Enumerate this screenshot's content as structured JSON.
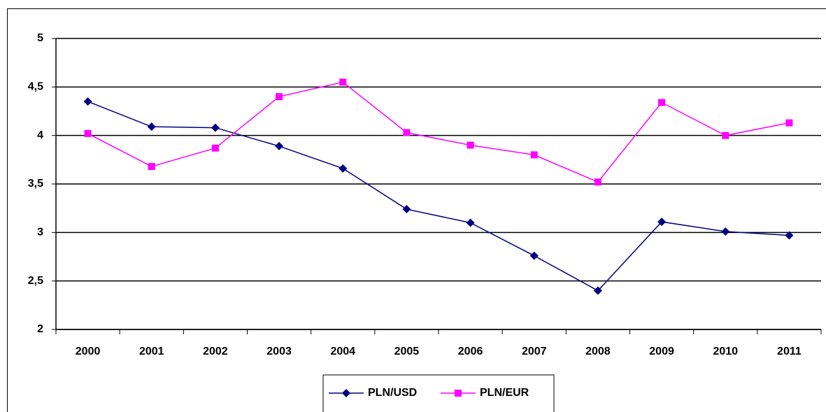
{
  "chart_data": {
    "type": "line",
    "categories": [
      "2000",
      "2001",
      "2002",
      "2003",
      "2004",
      "2005",
      "2006",
      "2007",
      "2008",
      "2009",
      "2010",
      "2011"
    ],
    "series": [
      {
        "name": "PLN/USD",
        "color": "#000080",
        "marker": "diamond",
        "values": [
          4.35,
          4.09,
          4.08,
          3.89,
          3.66,
          3.24,
          3.1,
          2.76,
          2.4,
          3.11,
          3.01,
          2.97
        ]
      },
      {
        "name": "PLN/EUR",
        "color": "#ff00ff",
        "marker": "square",
        "values": [
          4.02,
          3.68,
          3.87,
          4.4,
          4.55,
          4.03,
          3.9,
          3.8,
          3.52,
          4.34,
          4.0,
          4.13
        ]
      }
    ],
    "ylim": [
      2,
      5
    ],
    "yticks": [
      2,
      {
        "value": 2.5,
        "label": "2,5"
      },
      3,
      {
        "value": 3.5,
        "label": "3,5"
      },
      4,
      {
        "value": 4.5,
        "label": "4,5"
      },
      5
    ],
    "grid": true,
    "legend": "bottom"
  }
}
